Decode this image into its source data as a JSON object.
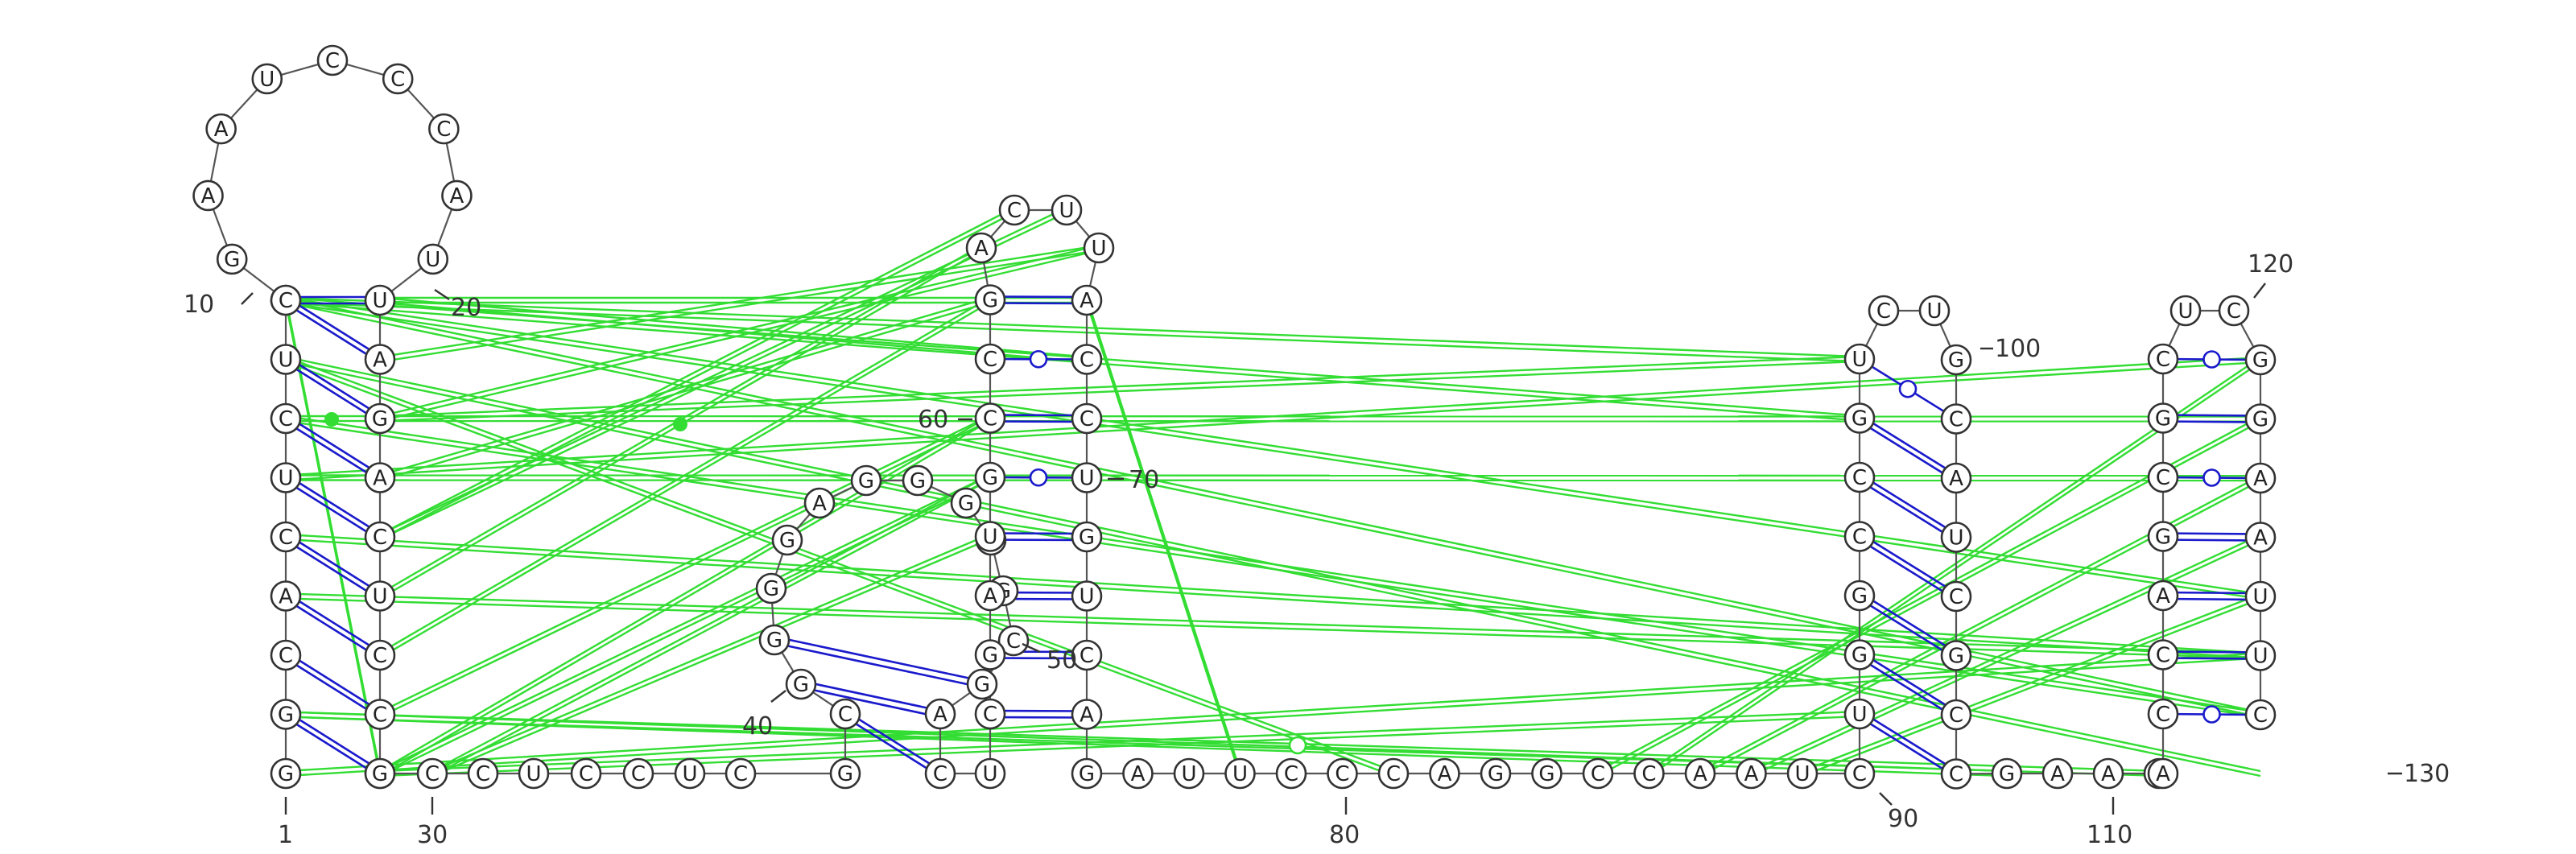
{
  "sequence": "GGCACUCUUCGAAUCCCAUUAGACUCCGGCCUCCUCGCGGGGAGGGCGCGACUCGAUGCCGACUUACCUGUCAGAUUCCCAGGCCAAUCUGGCCGUCUGCAUCGCCGAAGACCAGCGCUCGGAAUUC",
  "positions": [
    {
      "label": "1"
    },
    {
      "label": "10"
    },
    {
      "label": "20"
    },
    {
      "label": "30"
    },
    {
      "label": "40"
    },
    {
      "label": "50"
    },
    {
      "label": "60"
    },
    {
      "label": "70"
    },
    {
      "label": "80"
    },
    {
      "label": "90"
    },
    {
      "label": "100"
    },
    {
      "label": "110"
    },
    {
      "label": "120"
    },
    {
      "label": "130"
    }
  ],
  "colors": {
    "canonical_pair": "#1a1acc",
    "tertiary_interaction": "#33dd33",
    "backbone": "#555555",
    "nucleotide_outline": "#333333"
  }
}
